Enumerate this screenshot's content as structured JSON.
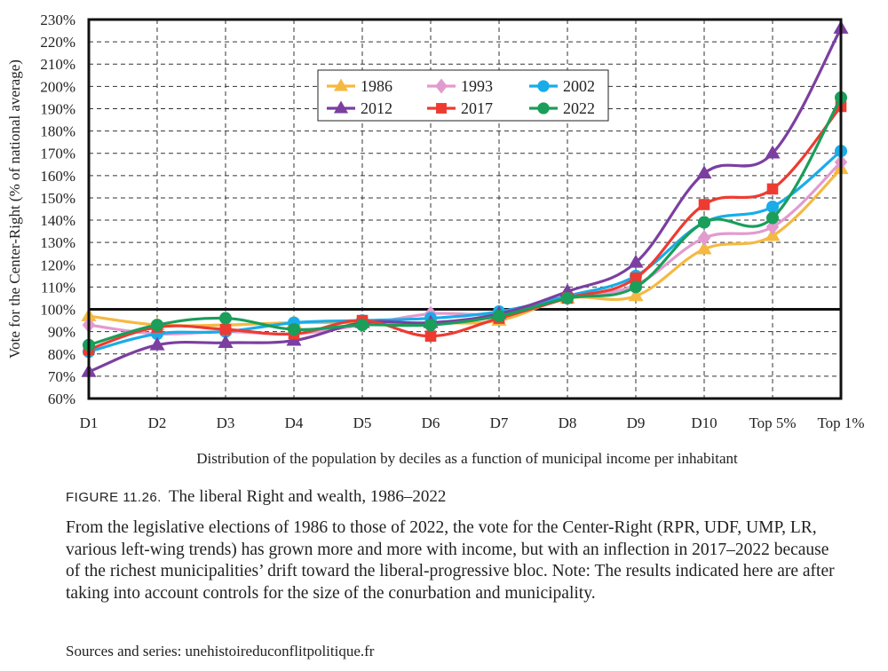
{
  "chart_data": {
    "type": "line",
    "xlabel": "Distribution of the population by deciles as a function of municipal income per inhabitant",
    "ylabel": "Vote for the Center-Right (% of national average)",
    "categories": [
      "D1",
      "D2",
      "D3",
      "D4",
      "D5",
      "D6",
      "D7",
      "D8",
      "D9",
      "D10",
      "Top 5%",
      "Top 1%"
    ],
    "ylim": [
      60,
      230
    ],
    "yticks": [
      60,
      70,
      80,
      90,
      100,
      110,
      120,
      130,
      140,
      150,
      160,
      170,
      180,
      190,
      200,
      210,
      220,
      230
    ],
    "ytick_labels": [
      "60%",
      "70%",
      "80%",
      "90%",
      "100%",
      "110%",
      "120%",
      "130%",
      "140%",
      "150%",
      "160%",
      "170%",
      "180%",
      "190%",
      "200%",
      "210%",
      "220%",
      "230%"
    ],
    "grid": true,
    "reference_line": 100,
    "legend_position": "top-center",
    "series": [
      {
        "name": "1986",
        "color": "#F5B942",
        "marker": "triangle",
        "values": [
          97,
          93,
          93,
          94,
          94,
          94,
          95,
          105,
          106,
          127,
          133,
          163
        ]
      },
      {
        "name": "1993",
        "color": "#E29BCF",
        "marker": "diamond",
        "values": [
          93,
          89,
          90,
          89,
          93,
          98,
          98,
          105,
          111,
          132,
          137,
          166
        ]
      },
      {
        "name": "2002",
        "color": "#1AACE8",
        "marker": "circle",
        "values": [
          81,
          89,
          90,
          94,
          95,
          96,
          99,
          106,
          115,
          139,
          146,
          171
        ]
      },
      {
        "name": "2012",
        "color": "#7B3FA0",
        "marker": "triangle",
        "values": [
          72,
          84,
          85,
          86,
          94,
          94,
          98,
          108,
          121,
          161,
          170,
          226
        ]
      },
      {
        "name": "2017",
        "color": "#EE3B31",
        "marker": "square",
        "values": [
          82,
          92,
          91,
          89,
          95,
          88,
          96,
          105,
          114,
          147,
          154,
          191
        ]
      },
      {
        "name": "2022",
        "color": "#1A9E5A",
        "marker": "circle",
        "values": [
          84,
          93,
          96,
          91,
          93,
          93,
          97,
          105,
          110,
          139,
          141,
          195
        ]
      }
    ]
  },
  "caption": {
    "label": "FIGURE 11.26.",
    "title": "The liberal Right and wealth, 1986–2022",
    "description": "From the legislative elections of 1986 to those of 2022, the vote for the Center-Right (RPR, UDF, UMP, LR, various left-wing trends) has grown more and more with income, but with an inflection in 2017–2022 because of the richest municipalities’ drift toward the liberal-progressive bloc. Note: The results indicated here are after taking into account controls for the size of the conurbation and municipality.",
    "source": "Sources and series: unehistoireduconflitpolitique.fr"
  }
}
